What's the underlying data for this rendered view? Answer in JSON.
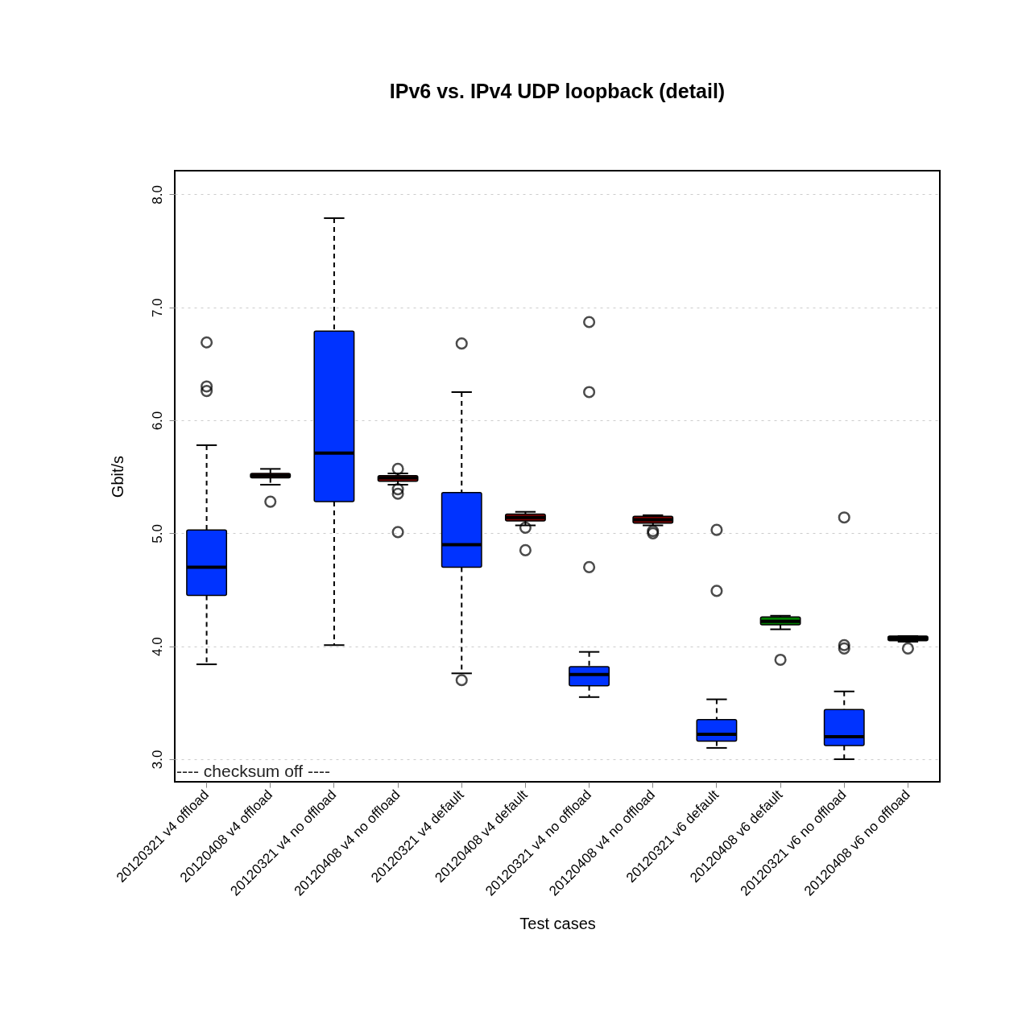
{
  "chart_data": {
    "type": "box",
    "title": "IPv6 vs. IPv4 UDP loopback (detail)",
    "xlabel": "Test cases",
    "ylabel": "Gbit/s",
    "categories": [
      "20120321 v4 offload",
      "20120408 v4 offload",
      "20120321 v4 no offload",
      "20120408 v4 no offload",
      "20120321 v4 default",
      "20120408 v4 default",
      "20120321 v4 no offload",
      "20120408 v4 no offload",
      "20120321 v6 default",
      "20120408 v6 default",
      "20120321 v6 no offload",
      "20120408 v6 no offload"
    ],
    "colors": [
      "#0033ff",
      "#800000",
      "#0033ff",
      "#800000",
      "#0033ff",
      "#800000",
      "#0033ff",
      "#800000",
      "#0033ff",
      "#008000",
      "#0033ff",
      "#000000"
    ],
    "boxes": [
      {
        "low": 3.84,
        "q1": 4.45,
        "median": 4.7,
        "q3": 5.03,
        "high": 5.78,
        "outliers": [
          6.69,
          6.3,
          6.26
        ]
      },
      {
        "low": 5.43,
        "q1": 5.49,
        "median": 5.51,
        "q3": 5.53,
        "high": 5.57,
        "outliers": [
          5.28
        ]
      },
      {
        "low": 4.01,
        "q1": 5.28,
        "median": 5.71,
        "q3": 6.79,
        "high": 7.79
      },
      {
        "low": 5.43,
        "q1": 5.46,
        "median": 5.49,
        "q3": 5.51,
        "high": 5.53,
        "outliers": [
          5.57,
          5.39,
          5.35,
          5.01
        ]
      },
      {
        "low": 3.76,
        "q1": 4.7,
        "median": 4.9,
        "q3": 5.36,
        "high": 6.25,
        "outliers": [
          6.68,
          3.7
        ]
      },
      {
        "low": 5.07,
        "q1": 5.11,
        "median": 5.14,
        "q3": 5.17,
        "high": 5.19,
        "outliers": [
          5.05,
          4.85
        ]
      },
      {
        "low": 3.55,
        "q1": 3.65,
        "median": 3.75,
        "q3": 3.82,
        "high": 3.95,
        "outliers": [
          6.87,
          6.25,
          4.7
        ]
      },
      {
        "low": 5.07,
        "q1": 5.09,
        "median": 5.12,
        "q3": 5.15,
        "high": 5.16,
        "outliers": [
          5.02,
          5.0
        ]
      },
      {
        "low": 3.1,
        "q1": 3.16,
        "median": 3.22,
        "q3": 3.35,
        "high": 3.53,
        "outliers": [
          5.03,
          4.49
        ]
      },
      {
        "low": 4.15,
        "q1": 4.19,
        "median": 4.22,
        "q3": 4.26,
        "high": 4.27,
        "outliers": [
          3.88
        ]
      },
      {
        "low": 3.0,
        "q1": 3.12,
        "median": 3.2,
        "q3": 3.44,
        "high": 3.6,
        "outliers": [
          5.14,
          3.98,
          4.01
        ]
      },
      {
        "low": 4.04,
        "q1": 4.05,
        "median": 4.07,
        "q3": 4.09,
        "high": 4.09,
        "outliers": [
          3.98
        ]
      }
    ],
    "ylim": [
      2.8,
      8.21
    ],
    "yticks": [
      {
        "value": 3,
        "label": "3.0"
      },
      {
        "value": 4,
        "label": "4.0"
      },
      {
        "value": 5,
        "label": "5.0"
      },
      {
        "value": 6,
        "label": "6.0"
      },
      {
        "value": 7,
        "label": "7.0"
      },
      {
        "value": 8,
        "label": "8.0"
      }
    ],
    "grid": "y",
    "annotations": [
      "---- checksum off ----"
    ]
  }
}
